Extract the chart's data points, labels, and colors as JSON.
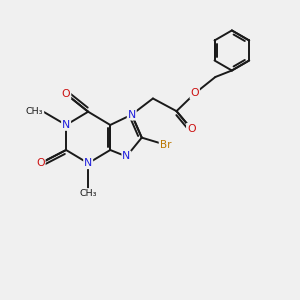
{
  "bg_color": "#f0f0f0",
  "bond_color": "#1a1a1a",
  "N_color": "#2020dd",
  "O_color": "#cc1111",
  "Br_color": "#bb7700",
  "lw": 1.4,
  "figsize": [
    3.0,
    3.0
  ],
  "dpi": 100,
  "xlim": [
    0,
    10
  ],
  "ylim": [
    0,
    10
  ]
}
